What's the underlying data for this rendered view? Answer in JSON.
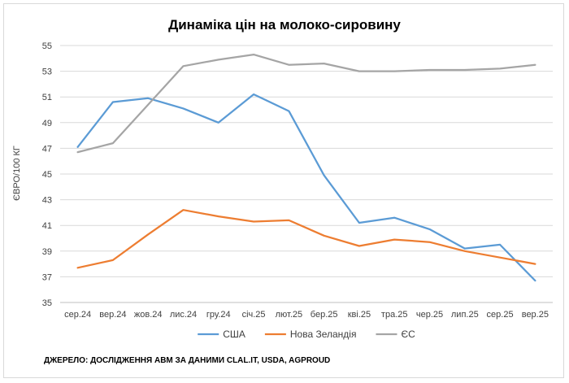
{
  "chart_data": {
    "type": "line",
    "title": "Динаміка цін на молоко-сировину",
    "ylabel": "ЄВРО/100 КГ",
    "xlabel": "",
    "ylim": [
      35,
      55
    ],
    "yticks": [
      35,
      37,
      39,
      41,
      43,
      45,
      47,
      49,
      51,
      53,
      55
    ],
    "categories": [
      "сер.24",
      "вер.24",
      "жов.24",
      "лис.24",
      "гру.24",
      "січ.25",
      "лют.25",
      "бер.25",
      "кві.25",
      "тра.25",
      "чер.25",
      "лип.25",
      "сер.25",
      "вер.25"
    ],
    "grid": true,
    "legend_position": "bottom",
    "series": [
      {
        "name": "США",
        "color": "#5b9bd5",
        "values": [
          47.1,
          50.6,
          50.9,
          50.1,
          49.0,
          51.2,
          49.9,
          44.9,
          41.2,
          41.6,
          40.7,
          39.2,
          39.5,
          36.7
        ]
      },
      {
        "name": "Нова Зеландія",
        "color": "#ed7d31",
        "values": [
          37.7,
          38.3,
          40.3,
          42.2,
          41.7,
          41.3,
          41.4,
          40.2,
          39.4,
          39.9,
          39.7,
          39.0,
          38.5,
          38.0
        ]
      },
      {
        "name": "ЄС",
        "color": "#a5a5a5",
        "values": [
          46.7,
          47.4,
          50.4,
          53.4,
          53.9,
          54.3,
          53.5,
          53.6,
          53.0,
          53.0,
          53.1,
          53.1,
          53.2,
          53.5
        ]
      }
    ]
  },
  "source_text": "ДЖЕРЕЛО: ДОСЛІДЖЕННЯ АВМ ЗА ДАНИМИ CLAL.IT, USDA, AGPROUD"
}
